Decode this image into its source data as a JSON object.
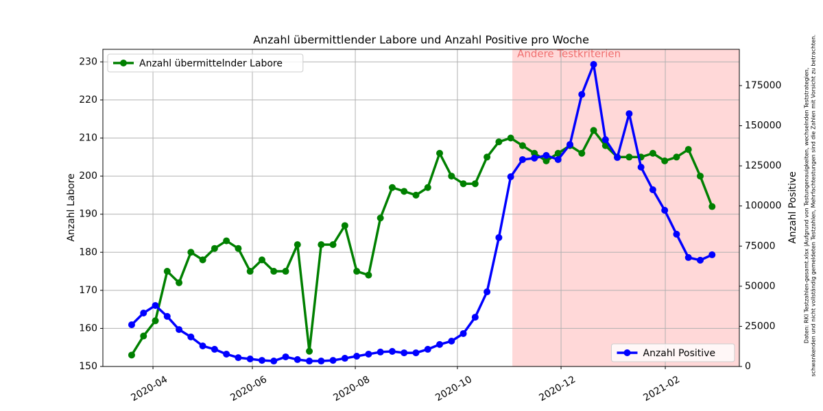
{
  "chart_data": {
    "type": "line",
    "title": "Anzahl übermittlender Labore und Anzahl Positive pro Woche",
    "ylabel": "Anzahl Labore",
    "y2label": "Anzahl Positive",
    "note": [
      "Daten: RKI Testzahlen-gesamt.xlsx |Aufgrund von Testungenauigkeiten, wechselnden Teststrategien,",
      "schwankenden und nicht vollständig gemeldeten Testzahlen, Mehrfachtestungen sind die Zahlen mit Vorsicht zu betrachten."
    ],
    "categories": [
      null,
      null,
      null,
      null,
      null,
      null,
      null,
      null,
      null,
      null,
      null,
      null,
      null,
      null,
      null,
      null,
      null,
      null,
      null,
      null,
      null,
      null,
      null,
      null,
      null,
      null,
      null,
      null,
      null,
      null,
      null,
      null,
      null,
      null,
      null,
      null,
      null,
      null,
      null,
      null,
      null,
      null,
      null,
      null,
      null,
      null,
      null,
      null,
      null,
      null
    ],
    "xlim": [
      -2.43,
      51.3
    ],
    "xticks": [
      {
        "value": 1.8,
        "label": "2020-04"
      },
      {
        "value": 10.19,
        "label": "2020-06"
      },
      {
        "value": 18.88,
        "label": "2020-08"
      },
      {
        "value": 27.5,
        "label": "2020-10"
      },
      {
        "value": 36.25,
        "label": "2020-12"
      },
      {
        "value": 45.05,
        "label": "2021-02"
      }
    ],
    "ylim": [
      150,
      233.3
    ],
    "yticks": [
      150,
      160,
      170,
      180,
      190,
      200,
      210,
      220,
      230
    ],
    "y2lim": [
      0,
      197600
    ],
    "y2ticks": [
      0,
      25000,
      50000,
      75000,
      100000,
      125000,
      150000,
      175000
    ],
    "grid": true,
    "span": {
      "range": [
        32.14,
        51.3
      ],
      "label": "Andere Testkriterien",
      "color": "#ffd8d8",
      "label_color": "#f07070"
    },
    "series": [
      {
        "name": "Anzahl übermittelnder Labore",
        "color": "#008000",
        "legend": "upper left",
        "values": [
          153,
          158,
          162,
          175,
          172,
          180,
          178,
          181,
          183,
          181,
          175,
          178,
          175,
          175,
          182,
          154,
          182,
          182,
          187,
          175,
          174,
          189,
          197,
          196,
          195,
          197,
          206,
          200,
          198,
          198,
          205,
          209,
          210,
          208,
          206,
          204,
          206,
          208,
          206,
          212,
          208,
          205,
          205,
          205,
          206,
          204,
          205,
          207,
          200,
          192
        ]
      },
      {
        "name": "Anzahl Positive",
        "color": "#0000ff",
        "axis": "y2",
        "legend": "lower right",
        "values": [
          26000,
          33300,
          38000,
          31200,
          23000,
          18400,
          12800,
          10700,
          7700,
          5500,
          4700,
          3800,
          3400,
          6000,
          4300,
          3400,
          3400,
          3800,
          5100,
          6400,
          7700,
          9000,
          9400,
          8500,
          8500,
          10700,
          13700,
          15800,
          20500,
          30700,
          46500,
          80300,
          118200,
          128900,
          129800,
          131500,
          128900,
          138300,
          169500,
          188200,
          141300,
          130200,
          157500,
          124200,
          110100,
          97300,
          82400,
          67900,
          66200,
          69600
        ]
      }
    ]
  }
}
